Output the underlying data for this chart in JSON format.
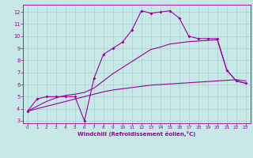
{
  "bg_color": "#c8e8e8",
  "grid_color": "#aad4d4",
  "line_color": "#990099",
  "xlabel": "Windchill (Refroidissement éolien,°C)",
  "xlim": [
    -0.5,
    23.5
  ],
  "ylim": [
    2.8,
    12.6
  ],
  "xticks": [
    0,
    1,
    2,
    3,
    4,
    5,
    6,
    7,
    8,
    9,
    10,
    11,
    12,
    13,
    14,
    15,
    16,
    17,
    18,
    19,
    20,
    21,
    22,
    23
  ],
  "yticks": [
    3,
    4,
    5,
    6,
    7,
    8,
    9,
    10,
    11,
    12
  ],
  "line1_x": [
    0,
    1,
    2,
    3,
    4,
    5,
    6,
    7,
    8,
    9,
    10,
    11,
    12,
    13,
    14,
    15,
    16,
    17,
    18,
    19,
    20,
    21,
    22,
    23
  ],
  "line1_y": [
    3.8,
    4.8,
    5.0,
    5.0,
    5.0,
    5.0,
    3.0,
    6.5,
    8.5,
    9.0,
    9.5,
    10.5,
    12.1,
    11.9,
    12.0,
    12.1,
    11.5,
    10.0,
    9.8,
    9.8,
    9.8,
    7.2,
    6.3,
    6.1
  ],
  "line2_x": [
    0,
    6,
    7,
    8,
    9,
    10,
    11,
    12,
    13,
    14,
    15,
    16,
    17,
    18,
    19,
    20,
    21,
    22,
    23
  ],
  "line2_y": [
    3.8,
    5.0,
    5.2,
    5.4,
    5.55,
    5.65,
    5.75,
    5.85,
    5.95,
    6.0,
    6.05,
    6.1,
    6.15,
    6.2,
    6.25,
    6.3,
    6.35,
    6.4,
    6.3
  ],
  "line3_x": [
    0,
    1,
    2,
    3,
    4,
    5,
    6,
    7,
    8,
    9,
    10,
    11,
    12,
    13,
    14,
    15,
    16,
    17,
    18,
    19,
    20,
    21,
    22,
    23
  ],
  "line3_y": [
    3.8,
    4.2,
    4.6,
    4.9,
    5.1,
    5.2,
    5.35,
    5.7,
    6.3,
    6.9,
    7.4,
    7.9,
    8.4,
    8.9,
    9.1,
    9.35,
    9.45,
    9.55,
    9.6,
    9.65,
    9.7,
    7.2,
    6.3,
    6.1
  ],
  "marker_x": [
    0,
    1,
    2,
    3,
    4,
    5,
    6,
    7,
    8,
    9,
    10,
    11,
    12,
    13,
    14,
    15,
    16,
    17,
    18,
    19,
    20,
    21,
    22,
    23
  ],
  "marker_y": [
    3.8,
    4.8,
    5.0,
    5.0,
    5.0,
    5.0,
    3.0,
    6.5,
    8.5,
    9.0,
    9.5,
    10.5,
    12.1,
    11.9,
    12.0,
    12.1,
    11.5,
    10.0,
    9.8,
    9.8,
    9.8,
    7.2,
    6.3,
    6.1
  ]
}
